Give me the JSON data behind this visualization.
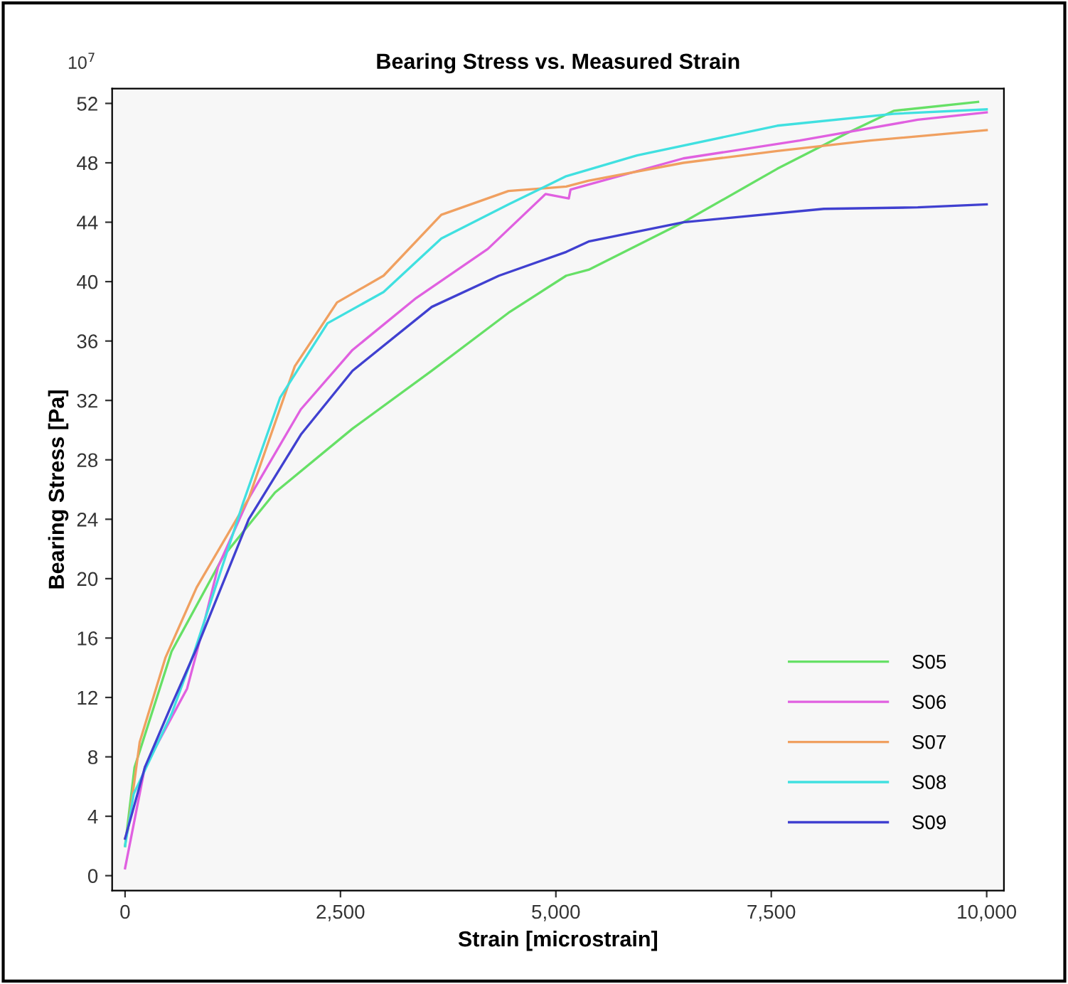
{
  "chart_data": {
    "type": "line",
    "title": "Bearing Stress vs. Measured Strain",
    "xlabel": "Strain [microstrain]",
    "ylabel": "Bearing Stress [Pa]",
    "annotations": [
      "10$^{7}$"
    ],
    "xlim": [
      -150,
      10200
    ],
    "ylim": [
      -1,
      53
    ],
    "xticks": [
      {
        "value": 0,
        "label": "0"
      },
      {
        "value": 2500,
        "label": "2,500"
      },
      {
        "value": 5000,
        "label": "5,000"
      },
      {
        "value": 7500,
        "label": "7,500"
      },
      {
        "value": 10000,
        "label": "10,000"
      }
    ],
    "yticks": [
      0,
      4,
      8,
      12,
      16,
      20,
      24,
      28,
      32,
      36,
      40,
      44,
      48,
      52
    ],
    "grid": false,
    "legend": "bottom right",
    "line_style": "solid",
    "marker": "none",
    "series": [
      {
        "name": "S05",
        "color": "#66e066",
        "x": [
          0,
          110,
          540,
          1140,
          1740,
          2640,
          3560,
          4450,
          5120,
          5380,
          6480,
          7570,
          8380,
          8920,
          9900
        ],
        "values": [
          2,
          7.3,
          15.1,
          21.5,
          25.8,
          30.1,
          34,
          37.9,
          40.4,
          40.8,
          44,
          47.6,
          50,
          51.5,
          52.1
        ]
      },
      {
        "name": "S06",
        "color": "#e060e0",
        "x": [
          0,
          230,
          720,
          830,
          1080,
          1435,
          2040,
          2640,
          3380,
          4210,
          4880,
          5150,
          5170,
          6480,
          7830,
          9200,
          10000
        ],
        "values": [
          0.5,
          7.3,
          12.6,
          15,
          20.8,
          25.4,
          31.4,
          35.4,
          38.9,
          42.2,
          45.9,
          45.6,
          46.2,
          48.3,
          49.5,
          50.9,
          51.4
        ]
      },
      {
        "name": "S07",
        "color": "#f0a060",
        "x": [
          0,
          30,
          170,
          470,
          830,
          1435,
          1970,
          2460,
          3000,
          3670,
          4450,
          5120,
          5380,
          6480,
          7570,
          8650,
          10000
        ],
        "values": [
          2.5,
          3,
          9,
          14.7,
          19.4,
          25.4,
          34.3,
          38.6,
          40.4,
          44.5,
          46.1,
          46.4,
          46.8,
          48,
          48.8,
          49.5,
          50.2
        ]
      },
      {
        "name": "S08",
        "color": "#40e0e0",
        "x": [
          0,
          100,
          540,
          800,
          1370,
          1800,
          2350,
          3000,
          3670,
          4450,
          5120,
          5940,
          7570,
          8920,
          10000
        ],
        "values": [
          2,
          5.5,
          10.9,
          15,
          25.1,
          32.2,
          37.2,
          39.3,
          42.9,
          45.2,
          47.1,
          48.5,
          50.5,
          51.3,
          51.6
        ]
      },
      {
        "name": "S09",
        "color": "#4040d0",
        "x": [
          0,
          230,
          540,
          830,
          1435,
          2040,
          2640,
          3560,
          4340,
          5120,
          5380,
          6480,
          8110,
          9200,
          10000
        ],
        "values": [
          2.5,
          7.3,
          11.5,
          15.3,
          24,
          29.7,
          34,
          38.3,
          40.4,
          42,
          42.7,
          44,
          44.9,
          45,
          45.2
        ]
      }
    ]
  }
}
